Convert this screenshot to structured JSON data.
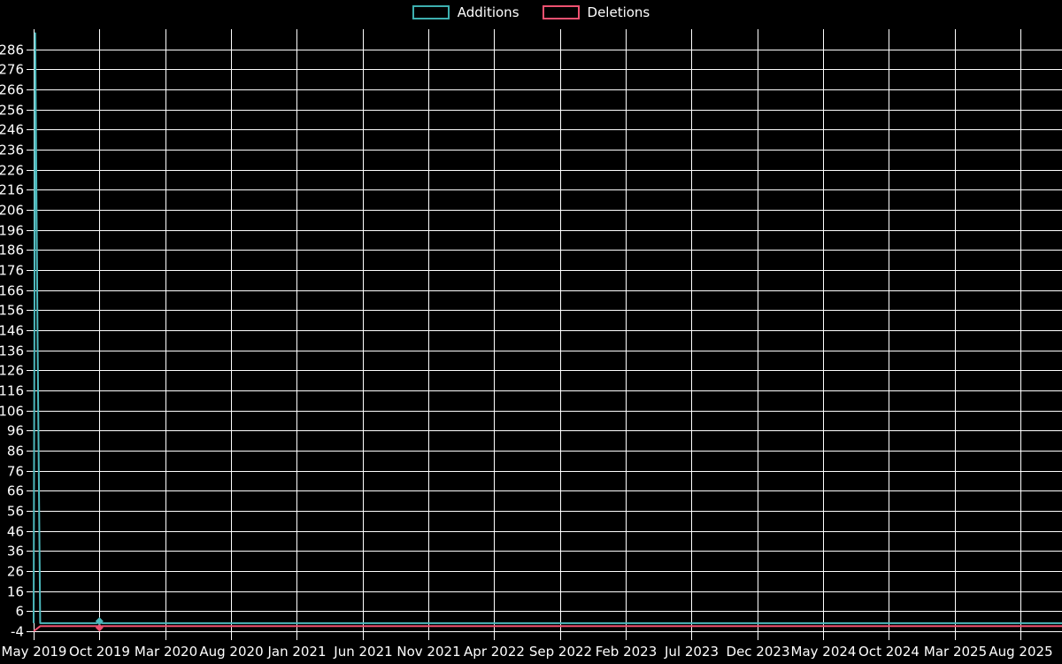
{
  "page": {
    "background_color": "#000000",
    "text_color": "#ffffff",
    "grid_color": "#ffffff"
  },
  "chart_data": {
    "type": "line",
    "title": "",
    "xlabel": "",
    "ylabel": "",
    "grid": true,
    "legend_position": "top-center",
    "legend": [
      {
        "label": "Additions",
        "color": "#3dafaf"
      },
      {
        "label": "Deletions",
        "color": "#ee5170"
      }
    ],
    "x_unit": "months since May 2019",
    "x_tick_interval_months": 5,
    "x_tick_labels": [
      "May 2019",
      "Oct 2019",
      "Mar 2020",
      "Aug 2020",
      "Jan 2021",
      "Jun 2021",
      "Nov 2021",
      "Apr 2022",
      "Sep 2022",
      "Feb 2023",
      "Jul 2023",
      "Dec 2023",
      "May 2024",
      "Oct 2024",
      "Mar 2025",
      "Aug 2025"
    ],
    "xlim_months": [
      0,
      78.2
    ],
    "y_ticks": [
      -4,
      6,
      16,
      26,
      36,
      46,
      56,
      66,
      76,
      86,
      96,
      106,
      116,
      126,
      136,
      146,
      156,
      166,
      176,
      186,
      196,
      206,
      216,
      226,
      236,
      246,
      256,
      266,
      276,
      286
    ],
    "ylim": [
      -4,
      296
    ],
    "series": [
      {
        "name": "Additions",
        "color": "#4cb8bc",
        "points": [
          [
            0,
            0
          ],
          [
            0.12,
            294
          ],
          [
            0.3,
            140
          ],
          [
            0.5,
            0
          ],
          [
            4.8,
            0
          ],
          [
            5,
            1
          ],
          [
            5.2,
            0
          ],
          [
            78.2,
            0
          ]
        ],
        "markers": [
          [
            5,
            1
          ]
        ]
      },
      {
        "name": "Deletions",
        "color": "#ee5170",
        "points": [
          [
            0,
            -4
          ],
          [
            0.5,
            -1.5
          ],
          [
            4.8,
            -1.5
          ],
          [
            5,
            -2.2
          ],
          [
            5.2,
            -1.5
          ],
          [
            78.2,
            -1.5
          ]
        ],
        "markers": [
          [
            5,
            -2.2
          ]
        ]
      }
    ]
  }
}
